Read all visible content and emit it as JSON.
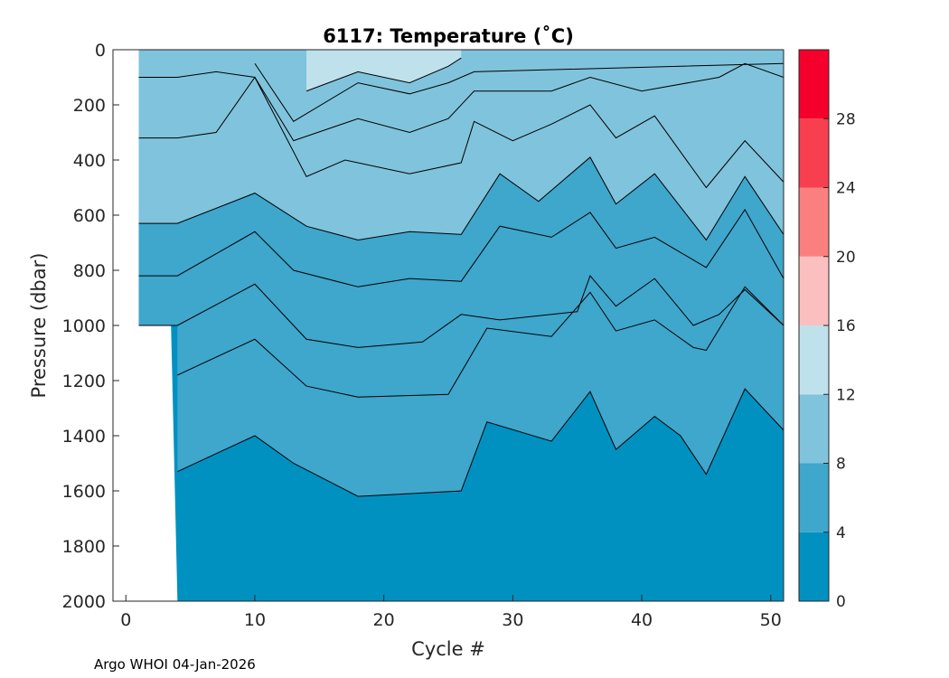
{
  "chart_data": {
    "type": "heatmap",
    "subtype": "filled-contour",
    "title": "6117:  Temperature (˚C)",
    "xlabel": "Cycle #",
    "ylabel": "Pressure (dbar)",
    "xlim": [
      -1,
      51
    ],
    "ylim": [
      2000,
      0
    ],
    "x_ticks": [
      0,
      10,
      20,
      30,
      40,
      50
    ],
    "y_ticks": [
      0,
      200,
      400,
      600,
      800,
      1000,
      1200,
      1400,
      1600,
      1800,
      2000
    ],
    "colorbar": {
      "range": [
        0,
        32
      ],
      "tick_labels": [
        0,
        4,
        8,
        12,
        16,
        20,
        24,
        28
      ],
      "levels": [
        {
          "min": 0,
          "max": 4,
          "color": "#0091c1"
        },
        {
          "min": 4,
          "max": 8,
          "color": "#3fa6cc"
        },
        {
          "min": 8,
          "max": 12,
          "color": "#80c3dc"
        },
        {
          "min": 12,
          "max": 16,
          "color": "#bfe1ec"
        },
        {
          "min": 16,
          "max": 20,
          "color": "#fcbfbf"
        },
        {
          "min": 20,
          "max": 24,
          "color": "#fa8080"
        },
        {
          "min": 24,
          "max": 28,
          "color": "#f73f4f"
        },
        {
          "min": 28,
          "max": 32,
          "color": "#f5002c"
        }
      ]
    },
    "data_extent": {
      "cycles_1_to_3_max_pressure": 1000,
      "cycles_4_to_51_max_pressure": 2000
    },
    "isotherms": [
      {
        "temp": 4,
        "cycles": [
          4,
          10,
          13,
          18,
          26,
          28,
          33,
          36,
          38,
          41,
          43,
          45,
          48,
          51
        ],
        "pressure": [
          1530,
          1400,
          1500,
          1620,
          1600,
          1350,
          1420,
          1240,
          1450,
          1330,
          1400,
          1540,
          1230,
          1380
        ]
      },
      {
        "temp": 5,
        "cycles": [
          4,
          10,
          14,
          18,
          25,
          28,
          33,
          36,
          38,
          41,
          44,
          45,
          48,
          51
        ],
        "pressure": [
          1180,
          1050,
          1220,
          1260,
          1250,
          1010,
          1040,
          880,
          1020,
          980,
          1080,
          1090,
          860,
          1000
        ]
      },
      {
        "temp": 6,
        "cycles": [
          1,
          4,
          10,
          14,
          18,
          23,
          26,
          29,
          35,
          36,
          38,
          41,
          44,
          46,
          48,
          51
        ],
        "pressure": [
          1000,
          1000,
          850,
          1050,
          1080,
          1060,
          960,
          980,
          950,
          820,
          930,
          830,
          1000,
          960,
          870,
          1000
        ]
      },
      {
        "temp": 7,
        "cycles": [
          1,
          4,
          10,
          13,
          18,
          22,
          26,
          29,
          33,
          36,
          38,
          41,
          45,
          48,
          51
        ],
        "pressure": [
          820,
          820,
          660,
          800,
          860,
          830,
          840,
          640,
          680,
          590,
          720,
          680,
          790,
          580,
          830
        ]
      },
      {
        "temp": 8,
        "cycles": [
          1,
          4,
          10,
          14,
          18,
          22,
          26,
          29,
          32,
          36,
          38,
          41,
          45,
          48,
          51
        ],
        "pressure": [
          630,
          630,
          520,
          640,
          690,
          660,
          670,
          450,
          550,
          390,
          560,
          450,
          690,
          460,
          670
        ]
      },
      {
        "temp": 9,
        "cycles": [
          1,
          4,
          7,
          10,
          14,
          17,
          22,
          26,
          27,
          30,
          33,
          36,
          38,
          41,
          45,
          48,
          51
        ],
        "pressure": [
          320,
          320,
          300,
          100,
          460,
          400,
          450,
          410,
          260,
          330,
          270,
          200,
          320,
          240,
          500,
          330,
          480
        ]
      },
      {
        "temp": 10,
        "cycles": [
          1,
          4,
          7,
          10,
          13,
          18,
          22,
          25,
          27,
          30,
          33,
          36,
          40,
          46,
          48,
          51
        ],
        "pressure": [
          100,
          100,
          80,
          100,
          330,
          250,
          300,
          250,
          150,
          150,
          150,
          100,
          150,
          100,
          50,
          100
        ]
      },
      {
        "temp": 11,
        "cycles": [
          10,
          13,
          18,
          22,
          25,
          27,
          51
        ],
        "pressure": [
          50,
          260,
          120,
          160,
          120,
          80,
          50
        ]
      },
      {
        "temp": 12,
        "cycles": [
          14,
          18,
          22,
          25,
          26
        ],
        "pressure": [
          150,
          80,
          120,
          60,
          30
        ]
      }
    ]
  },
  "footer": {
    "credit": "Argo WHOI 04-Jan-2026"
  }
}
